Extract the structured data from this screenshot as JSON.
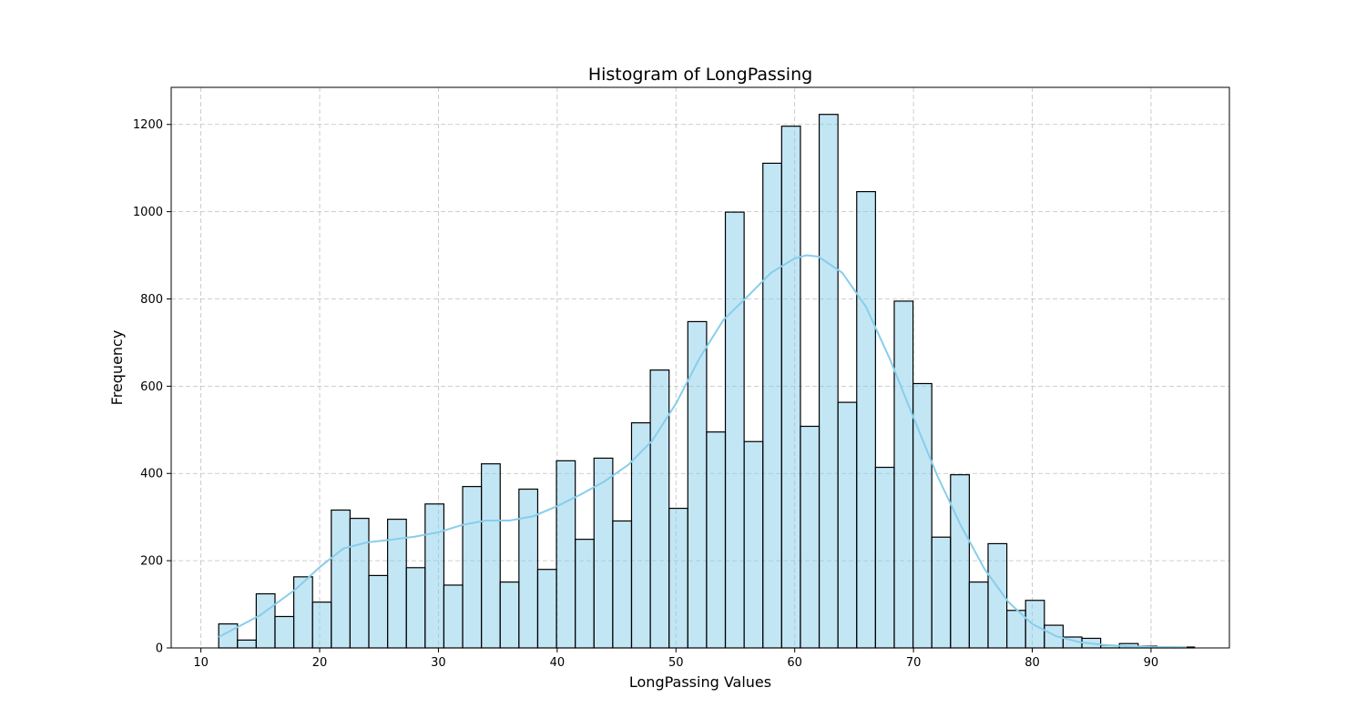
{
  "chart_data": {
    "type": "bar",
    "subtype": "histogram",
    "title": "Histogram of LongPassing",
    "xlabel": "LongPassing Values",
    "ylabel": "Frequency",
    "xlim": [
      7.5,
      96.6
    ],
    "ylim": [
      0,
      1285
    ],
    "xticks": [
      10,
      20,
      30,
      40,
      50,
      60,
      70,
      80,
      90
    ],
    "yticks": [
      0,
      200,
      400,
      600,
      800,
      1000,
      1200
    ],
    "grid": true,
    "bar_color": "#87ceeb",
    "bar_edge_color": "#000000",
    "kde_color": "#87ceeb",
    "bin_width": 1.58,
    "bin_edges_start": 11.5,
    "values": [
      55,
      18,
      124,
      72,
      163,
      105,
      316,
      297,
      166,
      295,
      184,
      330,
      144,
      370,
      422,
      151,
      364,
      180,
      429,
      249,
      435,
      291,
      516,
      637,
      320,
      748,
      495,
      999,
      473,
      1111,
      1196,
      508,
      1223,
      563,
      1046,
      414,
      795,
      606,
      254,
      397,
      151,
      239,
      86,
      109,
      52,
      25,
      22,
      6,
      10,
      4,
      2,
      2
    ],
    "kde": {
      "x": [
        11.5,
        15,
        18,
        20,
        22,
        24,
        26,
        28,
        30,
        32,
        34,
        36,
        38,
        40,
        42,
        44,
        46,
        48,
        50,
        52,
        54,
        56,
        58,
        60,
        61,
        62,
        64,
        66,
        68,
        70,
        72,
        74,
        76,
        78,
        80,
        82,
        84,
        86,
        88,
        90,
        93
      ],
      "y": [
        25,
        75,
        135,
        185,
        228,
        242,
        248,
        255,
        265,
        282,
        292,
        292,
        302,
        325,
        352,
        382,
        420,
        475,
        560,
        665,
        752,
        805,
        860,
        893,
        900,
        897,
        860,
        782,
        663,
        528,
        395,
        280,
        180,
        105,
        55,
        27,
        13,
        7,
        4,
        2,
        1
      ]
    }
  }
}
